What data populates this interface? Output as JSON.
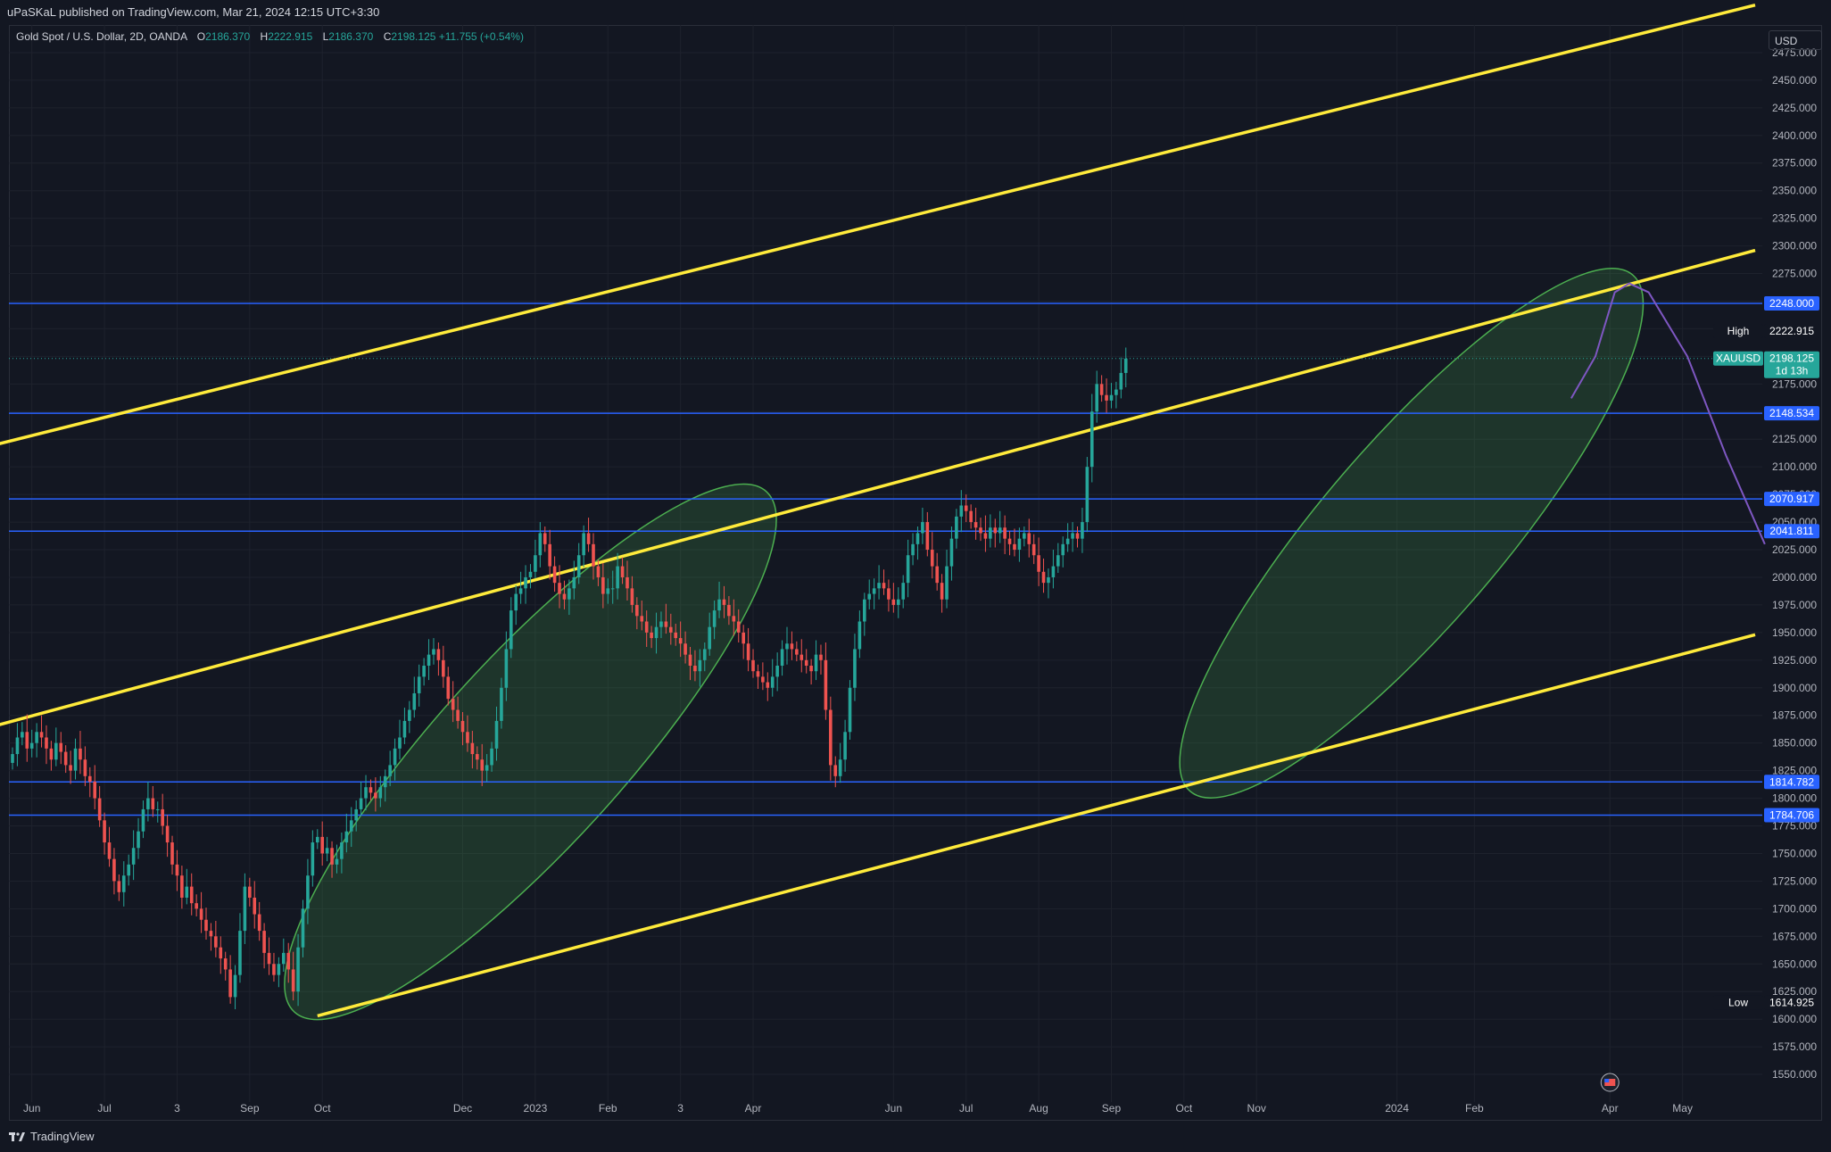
{
  "publisher_line": "uPaSKaL published on TradingView.com, Mar 21, 2024 12:15 UTC+3:30",
  "legend": {
    "symbol": "Gold Spot / U.S. Dollar, 2D, OANDA",
    "o_label": "O",
    "o_value": "2186.370",
    "h_label": "H",
    "h_value": "2222.915",
    "l_label": "L",
    "l_value": "2186.370",
    "c_label": "C",
    "c_value": "2198.125",
    "change": "+11.755 (+0.54%)"
  },
  "currency_button": "USD",
  "footer_brand": "TradingView",
  "colors": {
    "background": "#131722",
    "grid": "#1e222d",
    "up": "#26a69a",
    "down": "#ef5350",
    "channel": "#ffeb3b",
    "level": "#2962ff",
    "projection": "#7e57c2",
    "zone_fill": "#4caf50"
  },
  "chart_data": {
    "type": "candlestick",
    "symbol": "XAUUSD",
    "timeframe": "2D",
    "ylim": [
      1525,
      2500
    ],
    "y_ticks": [
      "1550.000",
      "1575.000",
      "1600.000",
      "1625.000",
      "1650.000",
      "1675.000",
      "1700.000",
      "1725.000",
      "1750.000",
      "1775.000",
      "1800.000",
      "1825.000",
      "1850.000",
      "1875.000",
      "1900.000",
      "1925.000",
      "1950.000",
      "1975.000",
      "2000.000",
      "2025.000",
      "2050.000",
      "2075.000",
      "2100.000",
      "2125.000",
      "2150.000",
      "2175.000",
      "2200.000",
      "2225.000",
      "2250.000",
      "2275.000",
      "2300.000",
      "2325.000",
      "2350.000",
      "2375.000",
      "2400.000",
      "2425.000",
      "2450.000",
      "2475.000"
    ],
    "x_ticks": [
      {
        "label": "Jun",
        "bar": 4
      },
      {
        "label": "Jul",
        "bar": 19
      },
      {
        "label": "3",
        "bar": 34
      },
      {
        "label": "Sep",
        "bar": 49
      },
      {
        "label": "Oct",
        "bar": 64
      },
      {
        "label": "Dec",
        "bar": 93
      },
      {
        "label": "2023",
        "bar": 108
      },
      {
        "label": "Feb",
        "bar": 123
      },
      {
        "label": "3",
        "bar": 138
      },
      {
        "label": "Apr",
        "bar": 153
      },
      {
        "label": "Jun",
        "bar": 182
      },
      {
        "label": "Jul",
        "bar": 197
      },
      {
        "label": "Aug",
        "bar": 212
      },
      {
        "label": "Sep",
        "bar": 227
      },
      {
        "label": "Oct",
        "bar": 242
      },
      {
        "label": "Nov",
        "bar": 257
      },
      {
        "label": "2024",
        "bar": 286
      },
      {
        "label": "Feb",
        "bar": 302
      },
      {
        "label": "Apr",
        "bar": 330
      },
      {
        "label": "May",
        "bar": 345
      }
    ],
    "closes": [
      1840,
      1855,
      1860,
      1845,
      1850,
      1860,
      1855,
      1845,
      1835,
      1850,
      1842,
      1830,
      1825,
      1845,
      1835,
      1820,
      1815,
      1800,
      1780,
      1760,
      1745,
      1725,
      1715,
      1730,
      1740,
      1755,
      1770,
      1790,
      1800,
      1790,
      1790,
      1775,
      1760,
      1740,
      1730,
      1710,
      1720,
      1705,
      1700,
      1690,
      1680,
      1675,
      1665,
      1655,
      1645,
      1620,
      1640,
      1680,
      1720,
      1710,
      1695,
      1680,
      1660,
      1650,
      1640,
      1650,
      1660,
      1645,
      1625,
      1665,
      1700,
      1730,
      1760,
      1765,
      1750,
      1755,
      1740,
      1745,
      1760,
      1770,
      1780,
      1790,
      1800,
      1810,
      1805,
      1800,
      1810,
      1820,
      1830,
      1845,
      1855,
      1870,
      1880,
      1895,
      1910,
      1920,
      1930,
      1935,
      1925,
      1910,
      1890,
      1880,
      1870,
      1860,
      1850,
      1840,
      1835,
      1825,
      1830,
      1845,
      1870,
      1900,
      1935,
      1970,
      1985,
      1990,
      2000,
      2005,
      2020,
      2040,
      2030,
      2010,
      1995,
      1985,
      1980,
      1990,
      2000,
      2020,
      2040,
      2030,
      2010,
      2000,
      1985,
      1990,
      1990,
      2010,
      2000,
      1990,
      1975,
      1965,
      1960,
      1950,
      1945,
      1955,
      1960,
      1955,
      1950,
      1945,
      1940,
      1930,
      1920,
      1915,
      1925,
      1935,
      1955,
      1970,
      1980,
      1975,
      1965,
      1960,
      1950,
      1940,
      1925,
      1915,
      1910,
      1905,
      1900,
      1910,
      1920,
      1935,
      1940,
      1935,
      1930,
      1925,
      1920,
      1915,
      1930,
      1925,
      1880,
      1830,
      1820,
      1835,
      1860,
      1900,
      1935,
      1960,
      1980,
      1985,
      1990,
      1995,
      1990,
      1980,
      1975,
      1980,
      1995,
      2020,
      2030,
      2040,
      2050,
      2025,
      2010,
      1995,
      1980,
      2010,
      2035,
      2055,
      2065,
      2060,
      2050,
      2045,
      2040,
      2035,
      2045,
      2040,
      2045,
      2035,
      2030,
      2025,
      2035,
      2040,
      2030,
      2020,
      2005,
      1995,
      2000,
      2010,
      2020,
      2030,
      2035,
      2040,
      2035,
      2050,
      2100,
      2150,
      2175,
      2165,
      2160,
      2165,
      2170,
      2185,
      2198
    ],
    "levels": [
      2248.0,
      2148.534,
      2070.917,
      2041.811,
      1814.782,
      1784.706
    ],
    "high": 2222.915,
    "low": 1614.925,
    "last": 2198.125,
    "countdown": "1d 13h",
    "tags": {
      "high_label": "High",
      "low_label": "Low",
      "symbol_label": "XAUUSD"
    },
    "channel": {
      "upper": [
        {
          "bar": -10,
          "price": 2113
        },
        {
          "bar": 360,
          "price": 2518
        }
      ],
      "middle": [
        {
          "bar": -10,
          "price": 1858
        },
        {
          "bar": 360,
          "price": 2296
        }
      ],
      "lower": [
        {
          "bar": 63,
          "price": 1603
        },
        {
          "bar": 360,
          "price": 1948
        }
      ]
    },
    "zones": [
      {
        "from_bar": 59,
        "from_price": 1610,
        "to_bar": 155,
        "to_price": 2074
      },
      {
        "from_bar": 244,
        "from_price": 1810,
        "to_bar": 334,
        "to_price": 2270
      }
    ],
    "projection": [
      {
        "bar": 322,
        "price": 2162
      },
      {
        "bar": 327,
        "price": 2200
      },
      {
        "bar": 331,
        "price": 2258
      },
      {
        "bar": 334,
        "price": 2266
      },
      {
        "bar": 338,
        "price": 2258
      },
      {
        "bar": 346,
        "price": 2200
      },
      {
        "bar": 354,
        "price": 2110
      },
      {
        "bar": 362,
        "price": 2030
      }
    ]
  }
}
